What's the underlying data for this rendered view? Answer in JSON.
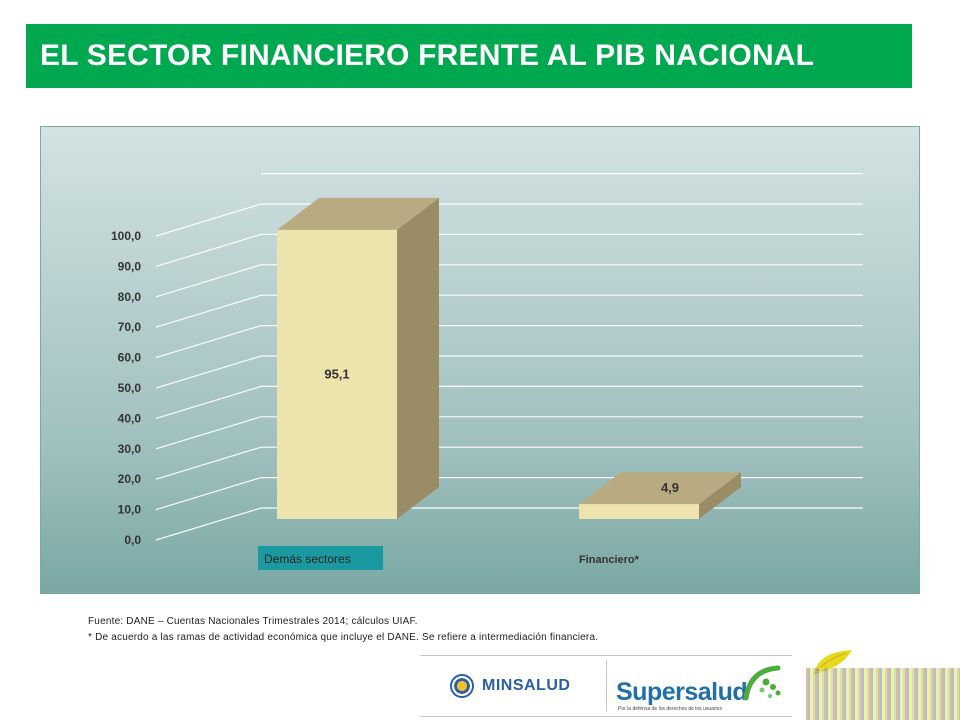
{
  "title": "EL SECTOR FINANCIERO FRENTE AL PIB NACIONAL",
  "chart_data": {
    "type": "bar",
    "style": "3d-column",
    "categories": [
      "Demás sectores",
      "Financiero*"
    ],
    "values": [
      95.1,
      4.9
    ],
    "value_labels": [
      "95,1",
      "4,9"
    ],
    "y_ticks": [
      "0,0",
      "10,0",
      "20,0",
      "30,0",
      "40,0",
      "50,0",
      "60,0",
      "70,0",
      "80,0",
      "90,0",
      "100,0"
    ],
    "ylim": [
      0,
      100
    ],
    "grid": true,
    "title": "",
    "xlabel": "",
    "ylabel": "",
    "bar_front_color": "#ede3ac",
    "bar_side_color": "#9a8c65",
    "bar_top_color": "#b8ab82",
    "highlight_label_bg": "#1a9aa0"
  },
  "footnotes": {
    "source": "Fuente: DANE – Cuentas Nacionales Trimestrales 2014; cálculos UIAF.",
    "note": "* De acuerdo a las ramas de actividad económica que incluye el DANE. Se refiere a intermediación financiera."
  },
  "logos": {
    "minsalud": "MINSALUD",
    "supersalud": "Supersalud",
    "supersalud_slogan": "Por la defensa de los derechos de los usuarios"
  },
  "colors": {
    "title_bar": "#00a84f",
    "minsalud_blue": "#2a5ea8",
    "supersalud_green": "#4cae3a"
  }
}
